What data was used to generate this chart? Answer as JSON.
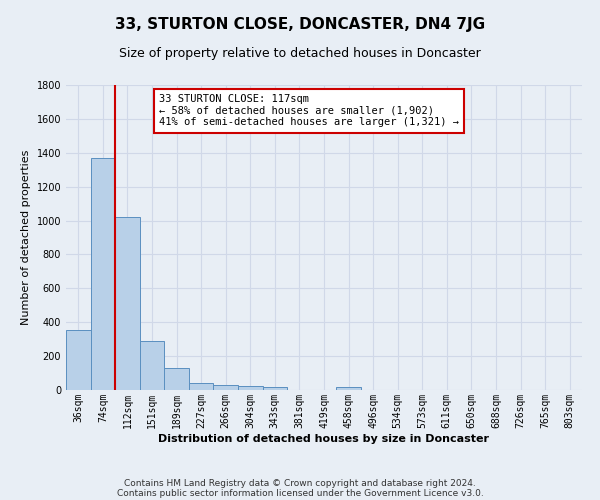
{
  "title": "33, STURTON CLOSE, DONCASTER, DN4 7JG",
  "subtitle": "Size of property relative to detached houses in Doncaster",
  "xlabel": "Distribution of detached houses by size in Doncaster",
  "ylabel": "Number of detached properties",
  "bin_labels": [
    "36sqm",
    "74sqm",
    "112sqm",
    "151sqm",
    "189sqm",
    "227sqm",
    "266sqm",
    "304sqm",
    "343sqm",
    "381sqm",
    "419sqm",
    "458sqm",
    "496sqm",
    "534sqm",
    "573sqm",
    "611sqm",
    "650sqm",
    "688sqm",
    "726sqm",
    "765sqm",
    "803sqm"
  ],
  "bar_values": [
    355,
    1370,
    1020,
    290,
    130,
    43,
    32,
    25,
    17,
    0,
    0,
    20,
    0,
    0,
    0,
    0,
    0,
    0,
    0,
    0,
    0
  ],
  "bar_color": "#b8d0e8",
  "bar_edge_color": "#5a8fc0",
  "bg_color": "#e8eef5",
  "grid_color": "#d0d8e8",
  "vline_color": "#cc0000",
  "vline_bar_index": 2,
  "annotation_text": "33 STURTON CLOSE: 117sqm\n← 58% of detached houses are smaller (1,902)\n41% of semi-detached houses are larger (1,321) →",
  "annotation_box_facecolor": "#ffffff",
  "annotation_box_edgecolor": "#cc0000",
  "ylim": [
    0,
    1800
  ],
  "yticks": [
    0,
    200,
    400,
    600,
    800,
    1000,
    1200,
    1400,
    1600,
    1800
  ],
  "footer_line1": "Contains HM Land Registry data © Crown copyright and database right 2024.",
  "footer_line2": "Contains public sector information licensed under the Government Licence v3.0.",
  "title_fontsize": 11,
  "subtitle_fontsize": 9,
  "xlabel_fontsize": 8,
  "ylabel_fontsize": 8,
  "tick_fontsize": 7,
  "annot_fontsize": 7.5
}
